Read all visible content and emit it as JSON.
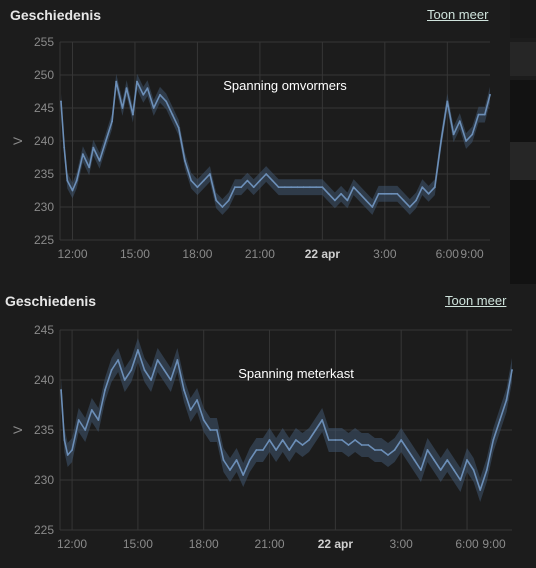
{
  "cards": [
    {
      "header": {
        "title": "Geschiedenis",
        "more_label": "Toon meer"
      },
      "chart_data": {
        "type": "line",
        "title": "Spanning  omvormers",
        "ylabel": "V",
        "ylim": [
          225,
          255
        ],
        "y_ticks": [
          225,
          230,
          235,
          240,
          245,
          250,
          255
        ],
        "xlim": [
          11.4,
          32.05
        ],
        "x_ticks": [
          {
            "at": 12,
            "label": "12:00",
            "bold": false
          },
          {
            "at": 15,
            "label": "15:00",
            "bold": false
          },
          {
            "at": 18,
            "label": "18:00",
            "bold": false
          },
          {
            "at": 21,
            "label": "21:00",
            "bold": false
          },
          {
            "at": 24,
            "label": "22 apr",
            "bold": true
          },
          {
            "at": 27,
            "label": "3:00",
            "bold": false
          },
          {
            "at": 30,
            "label": "6:00",
            "bold": false
          },
          {
            "at": 33,
            "label": "9:00",
            "bold": false
          }
        ],
        "grid": true,
        "line_color": "#6c8fb8",
        "band_color": "#3f5570",
        "x": [
          11.45,
          11.6,
          11.75,
          12.0,
          12.2,
          12.5,
          12.8,
          13.0,
          13.3,
          13.6,
          13.9,
          14.1,
          14.4,
          14.6,
          14.9,
          15.1,
          15.4,
          15.6,
          15.9,
          16.2,
          16.5,
          16.8,
          17.1,
          17.4,
          17.7,
          18.0,
          18.3,
          18.6,
          18.9,
          19.2,
          19.5,
          19.8,
          20.1,
          20.4,
          20.7,
          21.0,
          21.3,
          21.6,
          21.9,
          22.2,
          22.5,
          22.8,
          23.1,
          23.4,
          23.7,
          24.0,
          24.3,
          24.6,
          24.9,
          25.2,
          25.5,
          25.8,
          26.1,
          26.4,
          26.7,
          27.0,
          27.3,
          27.6,
          27.9,
          28.2,
          28.5,
          28.8,
          29.1,
          29.4,
          29.7,
          30.0,
          30.3,
          30.6,
          30.9,
          31.2,
          31.5,
          31.8,
          32.05
        ],
        "values": [
          246,
          239,
          234,
          232.5,
          234,
          238,
          236,
          239,
          237,
          240,
          243,
          249,
          245,
          248,
          244,
          249,
          247,
          248,
          245,
          247,
          246,
          244,
          242,
          237,
          234,
          233,
          234,
          235,
          231,
          230,
          231,
          233,
          233,
          234,
          233,
          234,
          235,
          234,
          233,
          233,
          233,
          233,
          233,
          233,
          233,
          233,
          232,
          231,
          232,
          231,
          233,
          232,
          231,
          230,
          232,
          232,
          232,
          232,
          231,
          230,
          231,
          233,
          232,
          233,
          240,
          246,
          241,
          243,
          240,
          241,
          244,
          244,
          247
        ]
      }
    },
    {
      "header": {
        "title": "Geschiedenis",
        "more_label": "Toon meer"
      },
      "chart_data": {
        "type": "line",
        "title": "Spanning meterkast",
        "ylabel": "V",
        "ylim": [
          225,
          245
        ],
        "y_ticks": [
          225,
          230,
          235,
          240,
          245
        ],
        "xlim": [
          11.45,
          32.05
        ],
        "x_ticks": [
          {
            "at": 12,
            "label": "12:00",
            "bold": false
          },
          {
            "at": 15,
            "label": "15:00",
            "bold": false
          },
          {
            "at": 18,
            "label": "18:00",
            "bold": false
          },
          {
            "at": 21,
            "label": "21:00",
            "bold": false
          },
          {
            "at": 24,
            "label": "22 apr",
            "bold": true
          },
          {
            "at": 27,
            "label": "3:00",
            "bold": false
          },
          {
            "at": 30,
            "label": "6:00",
            "bold": false
          },
          {
            "at": 33,
            "label": "9:00",
            "bold": false
          }
        ],
        "grid": true,
        "line_color": "#6c8fb8",
        "band_color": "#3f5570",
        "x": [
          11.5,
          11.65,
          11.8,
          12.0,
          12.3,
          12.6,
          12.9,
          13.2,
          13.5,
          13.8,
          14.1,
          14.4,
          14.7,
          15.0,
          15.3,
          15.6,
          15.9,
          16.2,
          16.5,
          16.8,
          17.1,
          17.4,
          17.7,
          18.0,
          18.3,
          18.6,
          18.9,
          19.2,
          19.5,
          19.8,
          20.1,
          20.4,
          20.7,
          21.0,
          21.3,
          21.6,
          21.9,
          22.2,
          22.5,
          22.8,
          23.1,
          23.4,
          23.7,
          24.0,
          24.3,
          24.6,
          24.9,
          25.2,
          25.5,
          25.8,
          26.1,
          26.4,
          26.7,
          27.0,
          27.3,
          27.6,
          27.9,
          28.2,
          28.5,
          28.8,
          29.1,
          29.4,
          29.7,
          30.0,
          30.3,
          30.6,
          30.9,
          31.2,
          31.5,
          31.8,
          32.05
        ],
        "values": [
          239,
          234,
          232.5,
          233,
          236,
          235,
          237,
          236,
          239,
          241,
          242,
          240,
          241,
          243,
          241,
          240,
          242,
          241,
          240,
          242,
          239,
          237,
          238,
          236,
          235,
          235,
          232,
          231,
          232,
          230.5,
          232,
          233,
          233,
          234,
          233,
          234,
          233,
          234,
          233.5,
          234,
          235,
          236,
          234,
          234,
          234,
          233.5,
          234,
          233.5,
          233.5,
          233,
          233,
          232.5,
          233,
          234,
          233,
          232,
          231,
          233,
          232,
          231,
          232,
          231,
          230,
          232,
          231,
          229,
          231,
          234,
          236,
          238,
          241
        ]
      }
    }
  ]
}
